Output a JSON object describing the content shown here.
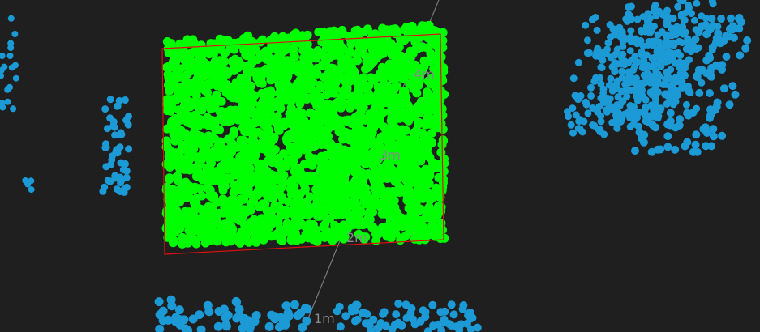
{
  "colors": {
    "background": "#1f1f1f",
    "selected_points": "#00ff00",
    "other_points": "#1b9ad6",
    "bounding_box": "#e01010",
    "range_line": "#7a7a7a",
    "range_label": "#8a8a8a"
  },
  "range_labels": [
    "1m",
    "2m",
    "3m",
    "4m"
  ]
}
